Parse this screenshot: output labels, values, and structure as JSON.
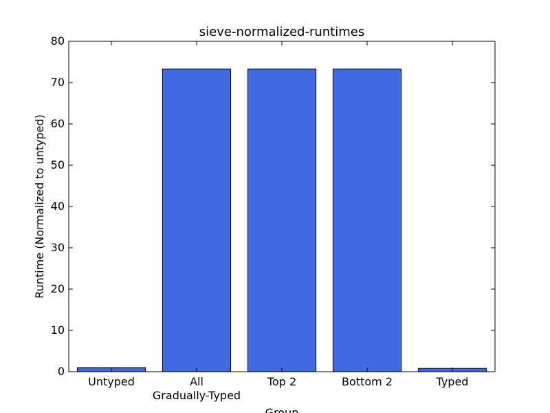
{
  "chart_data": {
    "type": "bar",
    "title": "sieve-normalized-runtimes",
    "xlabel": "Group",
    "ylabel": "Runtime (Normalized to untyped)",
    "categories": [
      "Untyped",
      "All\nGradually-Typed",
      "Top 2",
      "Bottom 2",
      "Typed"
    ],
    "values": [
      1.0,
      73.3,
      73.3,
      73.3,
      0.8
    ],
    "ylim": [
      0,
      80
    ],
    "yticks": [
      0,
      10,
      20,
      30,
      40,
      50,
      60,
      70,
      80
    ],
    "grid": false,
    "bar_color": "#4169e1",
    "edge_color": "#000000"
  }
}
